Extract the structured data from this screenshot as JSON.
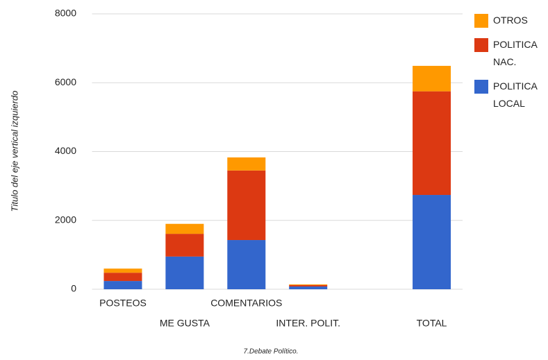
{
  "chart_data": {
    "type": "stacked_bar",
    "title": "7.Debate Político.",
    "y_label": "Titulo del eje vertical izquierdo",
    "categories": [
      "POSTEOS",
      "ME GUSTA",
      "COMENTARIOS",
      "INTER. POLIT.",
      null,
      "TOTAL"
    ],
    "series": [
      {
        "name": "POLITICA LOCAL",
        "color": "#3366cc",
        "values": [
          240,
          950,
          1430,
          80,
          null,
          2740
        ]
      },
      {
        "name": "POLITICA NAC.",
        "color": "#dc3912",
        "values": [
          240,
          660,
          2020,
          40,
          null,
          3010
        ]
      },
      {
        "name": "OTROS",
        "color": "#ff9900",
        "values": [
          120,
          290,
          380,
          20,
          null,
          740
        ]
      }
    ],
    "ylim": [
      0,
      8000
    ],
    "yticks": [
      0,
      2000,
      4000,
      6000,
      8000
    ],
    "grid": true,
    "legend": "right"
  }
}
